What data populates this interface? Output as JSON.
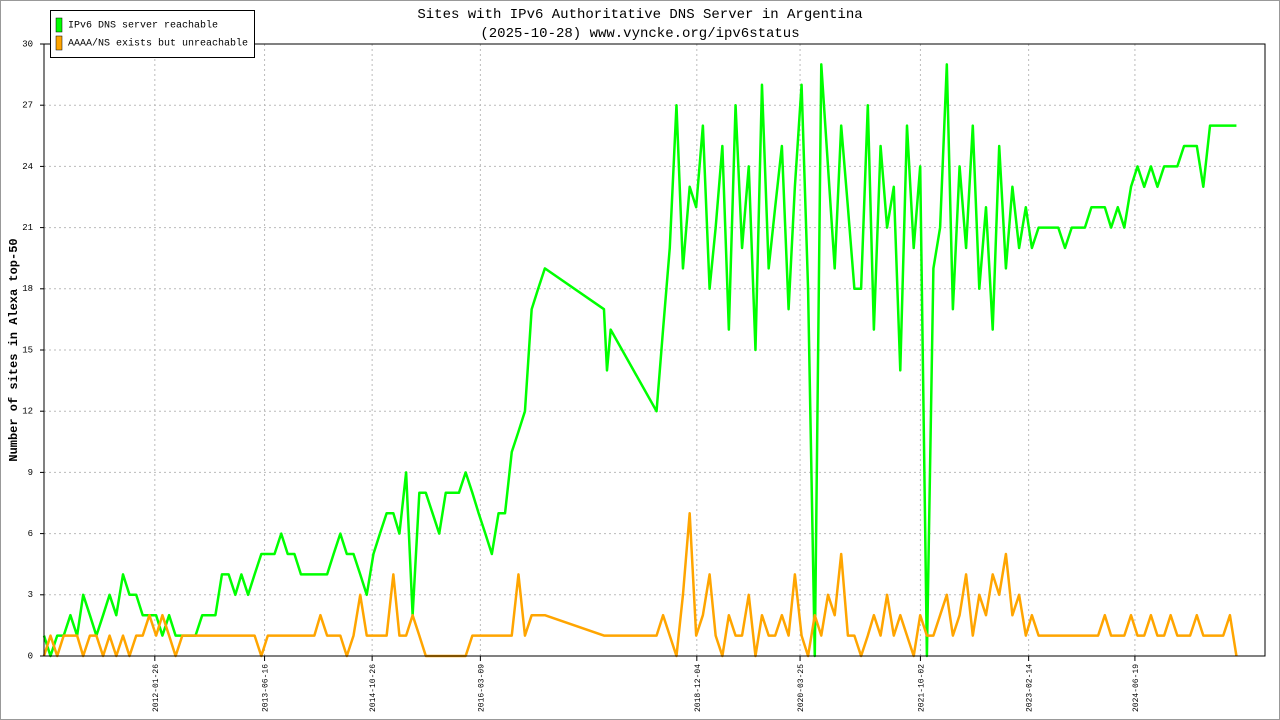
{
  "chart_data": {
    "type": "line",
    "title": "Sites with IPv6 Authoritative DNS Server in Argentina",
    "subtitle": "(2025-10-28) www.vyncke.org/ipv6status",
    "y_label": "Number of sites in Alexa top-50",
    "xlim": [
      "2010-09-01",
      "2026-02-10"
    ],
    "xticks": [
      "2012-01-26",
      "2013-06-16",
      "2014-10-26",
      "2016-03-09",
      "2018-12-04",
      "2020-03-25",
      "2021-10-02",
      "2023-02-14",
      "2024-06-19"
    ],
    "ylim": [
      0,
      30
    ],
    "yticks": [
      0,
      3,
      6,
      9,
      12,
      15,
      18,
      21,
      24,
      27,
      30
    ],
    "grid": true,
    "legend": "top-left",
    "x": [
      "2010-09-01",
      "2010-10-01",
      "2010-11-01",
      "2010-12-01",
      "2011-01-01",
      "2011-02-01",
      "2011-03-01",
      "2011-04-01",
      "2011-05-01",
      "2011-06-01",
      "2011-07-01",
      "2011-08-01",
      "2011-09-01",
      "2011-10-01",
      "2011-11-01",
      "2011-12-01",
      "2012-01-01",
      "2012-02-01",
      "2012-03-01",
      "2012-04-01",
      "2012-05-01",
      "2012-06-01",
      "2012-07-01",
      "2012-08-01",
      "2012-09-01",
      "2012-10-01",
      "2012-11-01",
      "2012-12-01",
      "2013-01-01",
      "2013-02-01",
      "2013-03-01",
      "2013-04-01",
      "2013-05-01",
      "2013-06-01",
      "2013-07-01",
      "2013-08-01",
      "2013-09-01",
      "2013-10-01",
      "2013-11-01",
      "2013-12-01",
      "2014-01-01",
      "2014-02-01",
      "2014-03-01",
      "2014-04-01",
      "2014-05-01",
      "2014-06-01",
      "2014-07-01",
      "2014-08-01",
      "2014-09-01",
      "2014-10-01",
      "2014-11-01",
      "2014-12-01",
      "2015-01-01",
      "2015-02-01",
      "2015-03-01",
      "2015-04-01",
      "2015-05-01",
      "2015-06-01",
      "2015-07-01",
      "2015-08-01",
      "2015-09-01",
      "2015-10-01",
      "2015-11-01",
      "2015-12-01",
      "2016-01-01",
      "2016-02-01",
      "2016-03-01",
      "2016-04-01",
      "2016-05-01",
      "2016-06-01",
      "2016-07-01",
      "2016-08-01",
      "2016-09-01",
      "2016-10-01",
      "2016-11-01",
      "2016-12-01",
      "2017-01-01",
      "2017-10-01",
      "2017-10-15",
      "2017-11-01",
      "2018-06-01",
      "2018-07-01",
      "2018-08-01",
      "2018-09-01",
      "2018-10-01",
      "2018-11-01",
      "2018-12-01",
      "2019-01-01",
      "2019-02-01",
      "2019-03-01",
      "2019-04-01",
      "2019-05-01",
      "2019-06-01",
      "2019-07-01",
      "2019-08-01",
      "2019-09-01",
      "2019-10-01",
      "2019-11-01",
      "2019-12-01",
      "2020-01-01",
      "2020-02-01",
      "2020-03-01",
      "2020-04-01",
      "2020-05-01",
      "2020-06-01",
      "2020-07-01",
      "2020-08-01",
      "2020-09-01",
      "2020-10-01",
      "2020-11-01",
      "2020-12-01",
      "2021-01-01",
      "2021-02-01",
      "2021-03-01",
      "2021-04-01",
      "2021-05-01",
      "2021-06-01",
      "2021-07-01",
      "2021-08-01",
      "2021-09-01",
      "2021-10-01",
      "2021-11-01",
      "2021-12-01",
      "2022-01-01",
      "2022-02-01",
      "2022-03-01",
      "2022-04-01",
      "2022-05-01",
      "2022-06-01",
      "2022-07-01",
      "2022-08-01",
      "2022-09-01",
      "2022-10-01",
      "2022-11-01",
      "2022-12-01",
      "2023-01-01",
      "2023-02-01",
      "2023-03-01",
      "2023-04-01",
      "2023-05-01",
      "2023-06-01",
      "2023-07-01",
      "2023-08-01",
      "2023-09-01",
      "2023-10-01",
      "2023-11-01",
      "2023-12-01",
      "2024-01-01",
      "2024-02-01",
      "2024-03-01",
      "2024-04-01",
      "2024-05-01",
      "2024-06-01",
      "2024-07-01",
      "2024-08-01",
      "2024-09-01",
      "2024-10-01",
      "2024-11-01",
      "2024-12-01",
      "2025-01-01",
      "2025-02-01",
      "2025-03-01",
      "2025-04-01",
      "2025-05-01",
      "2025-06-01",
      "2025-07-01",
      "2025-08-01",
      "2025-09-01",
      "2025-10-01"
    ],
    "series": [
      {
        "name": "IPv6 DNS server reachable",
        "color": "#00ff00",
        "values": [
          1,
          0,
          1,
          1,
          2,
          1,
          3,
          2,
          1,
          2,
          3,
          2,
          4,
          3,
          3,
          2,
          2,
          2,
          1,
          2,
          1,
          1,
          1,
          1,
          2,
          2,
          2,
          4,
          4,
          3,
          4,
          3,
          4,
          5,
          5,
          5,
          6,
          5,
          5,
          4,
          4,
          4,
          4,
          4,
          5,
          6,
          5,
          5,
          4,
          3,
          5,
          6,
          7,
          7,
          6,
          9,
          2,
          8,
          8,
          7,
          6,
          8,
          8,
          8,
          9,
          8,
          7,
          6,
          5,
          7,
          7,
          10,
          11,
          12,
          17,
          18,
          19,
          17,
          14,
          16,
          12,
          16,
          20,
          27,
          19,
          23,
          22,
          26,
          18,
          21,
          25,
          16,
          27,
          20,
          24,
          15,
          28,
          19,
          22,
          25,
          17,
          23,
          28,
          18,
          0,
          29,
          24,
          19,
          26,
          22,
          18,
          18,
          27,
          16,
          25,
          21,
          23,
          14,
          26,
          20,
          24,
          0,
          19,
          21,
          29,
          17,
          24,
          20,
          26,
          18,
          22,
          16,
          25,
          19,
          23,
          20,
          22,
          20,
          21,
          21,
          21,
          21,
          20,
          21,
          21,
          21,
          22,
          22,
          22,
          21,
          22,
          21,
          23,
          24,
          23,
          24,
          23,
          24,
          24,
          24,
          25,
          25,
          25,
          23,
          26,
          26,
          26,
          26,
          26
        ]
      },
      {
        "name": "AAAA/NS exists but unreachable",
        "color": "#ffa500",
        "values": [
          0,
          1,
          0,
          1,
          1,
          1,
          0,
          1,
          1,
          0,
          1,
          0,
          1,
          0,
          1,
          1,
          2,
          1,
          2,
          1,
          0,
          1,
          1,
          1,
          1,
          1,
          1,
          1,
          1,
          1,
          1,
          1,
          1,
          0,
          1,
          1,
          1,
          1,
          1,
          1,
          1,
          1,
          2,
          1,
          1,
          1,
          0,
          1,
          3,
          1,
          1,
          1,
          1,
          4,
          1,
          1,
          2,
          1,
          0,
          0,
          0,
          0,
          0,
          0,
          0,
          1,
          1,
          1,
          1,
          1,
          1,
          1,
          4,
          1,
          2,
          2,
          2,
          1,
          1,
          1,
          1,
          2,
          1,
          0,
          3,
          7,
          1,
          2,
          4,
          1,
          0,
          2,
          1,
          1,
          3,
          0,
          2,
          1,
          1,
          2,
          1,
          4,
          1,
          0,
          2,
          1,
          3,
          2,
          5,
          1,
          1,
          0,
          1,
          2,
          1,
          3,
          1,
          2,
          1,
          0,
          2,
          1,
          1,
          2,
          3,
          1,
          2,
          4,
          1,
          3,
          2,
          4,
          3,
          5,
          2,
          3,
          1,
          2,
          1,
          1,
          1,
          1,
          1,
          1,
          1,
          1,
          1,
          1,
          2,
          1,
          1,
          1,
          2,
          1,
          1,
          2,
          1,
          1,
          2,
          1,
          1,
          1,
          2,
          1,
          1,
          1,
          1,
          2,
          0
        ]
      }
    ]
  }
}
